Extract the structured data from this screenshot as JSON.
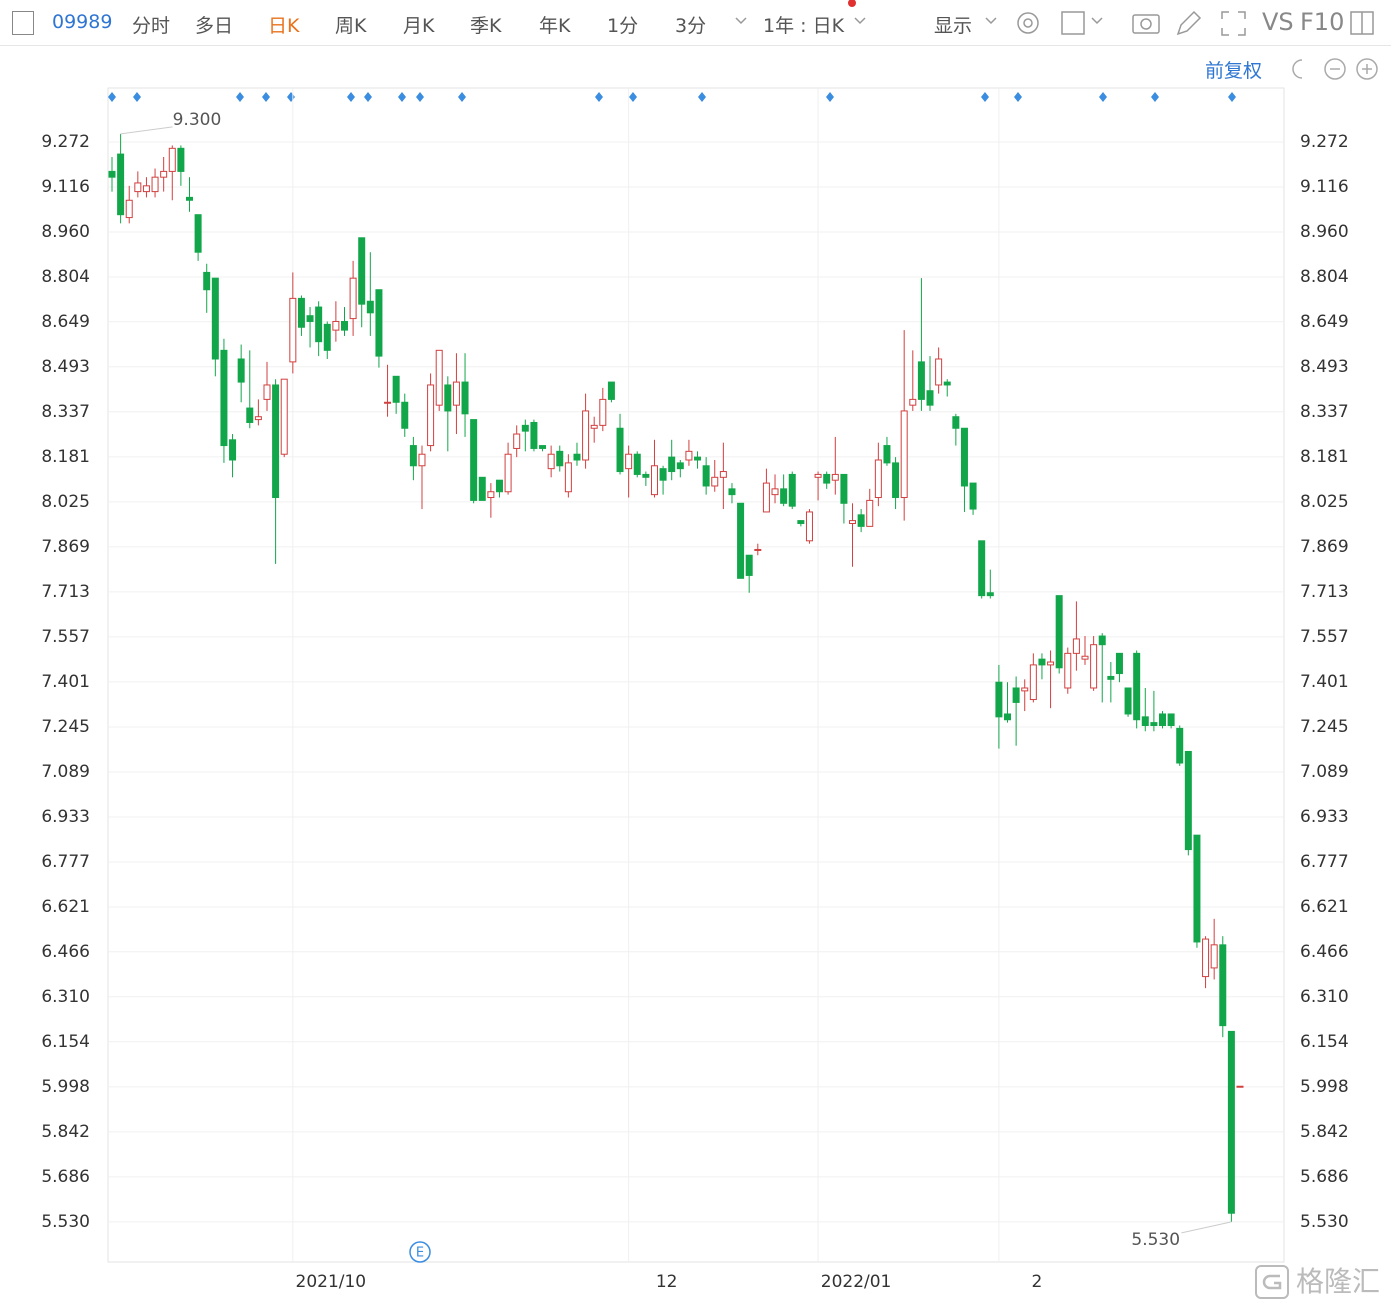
{
  "toolbar": {
    "code": "09989",
    "periods": [
      "分时",
      "多日",
      "日K",
      "周K",
      "月K",
      "季K",
      "年K",
      "1分",
      "3分"
    ],
    "range": "1年 : 日K",
    "display": "显示",
    "vs": "VS",
    "f10": "F10"
  },
  "adjust": "前复权",
  "watermark": "格隆汇",
  "chart_data": {
    "type": "candlestick",
    "categories": [
      null,
      null,
      null,
      null,
      null,
      null,
      null,
      null,
      null,
      null,
      null,
      null,
      null,
      null,
      null,
      null,
      null,
      null,
      null,
      null,
      null,
      "2021/10",
      null,
      null,
      null,
      null,
      null,
      null,
      null,
      null,
      null,
      null,
      null,
      null,
      null,
      null,
      null,
      null,
      null,
      null,
      null,
      null,
      null,
      null,
      null,
      null,
      null,
      null,
      null,
      null,
      null,
      null,
      null,
      null,
      null,
      null,
      null,
      null,
      null,
      null,
      "12",
      null,
      null,
      null,
      null,
      null,
      null,
      null,
      null,
      null,
      null,
      null,
      null,
      null,
      null,
      null,
      null,
      null,
      null,
      null,
      null,
      null,
      "2022/01",
      null,
      null,
      null,
      null,
      null,
      null,
      null,
      null,
      null,
      null,
      null,
      null,
      null,
      null,
      null,
      null,
      null,
      null,
      null,
      null,
      "2",
      null,
      null,
      null,
      null,
      null,
      null,
      null,
      null,
      null,
      null,
      null,
      null,
      null,
      null,
      null,
      null,
      null,
      null,
      null,
      null,
      null,
      null,
      null,
      null,
      null,
      null,
      null,
      null
    ],
    "open": [
      9.17,
      9.23,
      9.01,
      9.1,
      9.1,
      9.1,
      9.15,
      9.17,
      9.25,
      9.08,
      9.02,
      8.82,
      8.8,
      8.55,
      8.24,
      8.52,
      8.35,
      8.31,
      8.38,
      8.43,
      8.19,
      8.51,
      8.73,
      8.67,
      8.7,
      8.64,
      8.62,
      8.65,
      8.66,
      8.94,
      8.72,
      8.76,
      8.37,
      8.46,
      8.37,
      8.22,
      8.15,
      8.22,
      8.36,
      8.43,
      8.36,
      8.44,
      8.31,
      8.11,
      8.04,
      8.1,
      8.06,
      8.21,
      8.29,
      8.3,
      8.22,
      8.14,
      8.2,
      8.06,
      8.19,
      8.17,
      8.28,
      8.29,
      8.44,
      8.28,
      8.14,
      8.19,
      8.12,
      8.05,
      8.14,
      8.18,
      8.16,
      8.17,
      8.18,
      8.15,
      8.08,
      8.11,
      8.07,
      8.02,
      7.84,
      7.86,
      7.99,
      8.05,
      8.07,
      8.12,
      7.96,
      7.89,
      8.11,
      8.12,
      8.1,
      8.12,
      7.95,
      7.98,
      7.94,
      8.04,
      8.22,
      8.16,
      8.04,
      8.36,
      8.51,
      8.41,
      8.43,
      8.44,
      8.32,
      8.28,
      8.09,
      7.89,
      7.71,
      7.4,
      7.29,
      7.38,
      7.37,
      7.34,
      7.48,
      7.46,
      7.7,
      7.38,
      7.5,
      7.48,
      7.38,
      7.56,
      7.42,
      7.5,
      7.38,
      7.5,
      7.28,
      7.26,
      7.29,
      7.29,
      7.24,
      7.16,
      6.87,
      6.38,
      6.41,
      6.49,
      6.19,
      6.0
    ],
    "high": [
      9.22,
      9.3,
      9.12,
      9.17,
      9.15,
      9.18,
      9.22,
      9.26,
      9.26,
      9.15,
      9.02,
      8.85,
      8.8,
      8.59,
      8.26,
      8.57,
      8.55,
      8.38,
      8.51,
      8.45,
      8.45,
      8.82,
      8.74,
      8.7,
      8.72,
      8.65,
      8.72,
      8.7,
      8.86,
      8.94,
      8.89,
      8.76,
      8.5,
      8.46,
      8.4,
      8.25,
      8.22,
      8.47,
      8.55,
      8.46,
      8.54,
      8.54,
      8.31,
      8.11,
      8.09,
      8.1,
      8.23,
      8.29,
      8.31,
      8.31,
      8.22,
      8.22,
      8.22,
      8.19,
      8.23,
      8.4,
      8.32,
      8.42,
      8.44,
      8.33,
      8.22,
      8.2,
      8.13,
      8.24,
      8.15,
      8.24,
      8.17,
      8.24,
      8.2,
      8.18,
      8.17,
      8.23,
      8.09,
      8.02,
      7.84,
      7.88,
      8.14,
      8.12,
      8.12,
      8.13,
      7.96,
      8.0,
      8.13,
      8.13,
      8.25,
      8.12,
      8.02,
      8.0,
      8.07,
      8.23,
      8.25,
      8.18,
      8.62,
      8.55,
      8.8,
      8.53,
      8.56,
      8.45,
      8.33,
      8.28,
      8.09,
      7.89,
      7.79,
      7.46,
      7.4,
      7.42,
      7.41,
      7.5,
      7.5,
      7.51,
      7.7,
      7.52,
      7.68,
      7.56,
      7.56,
      7.57,
      7.47,
      7.5,
      7.38,
      7.51,
      7.38,
      7.37,
      7.3,
      7.29,
      7.25,
      7.16,
      6.87,
      6.52,
      6.58,
      6.52,
      6.19,
      6.0
    ],
    "low": [
      9.1,
      8.99,
      8.99,
      9.08,
      9.08,
      9.08,
      9.1,
      9.07,
      9.12,
      9.03,
      8.86,
      8.68,
      8.46,
      8.16,
      8.11,
      8.37,
      8.28,
      8.29,
      8.34,
      7.81,
      8.18,
      8.47,
      8.6,
      8.56,
      8.53,
      8.52,
      8.58,
      8.6,
      8.6,
      8.63,
      8.6,
      8.49,
      8.32,
      8.33,
      8.25,
      8.1,
      8.0,
      8.2,
      8.34,
      8.2,
      8.26,
      8.25,
      8.02,
      8.03,
      7.97,
      8.04,
      8.05,
      8.18,
      8.2,
      8.2,
      8.2,
      8.11,
      8.13,
      8.04,
      8.15,
      8.14,
      8.23,
      8.27,
      8.37,
      8.12,
      8.04,
      8.11,
      8.08,
      8.04,
      8.05,
      8.1,
      8.11,
      8.15,
      8.14,
      8.05,
      8.06,
      8.0,
      8.02,
      7.76,
      7.71,
      7.84,
      7.99,
      8.02,
      8.01,
      8.0,
      7.94,
      7.88,
      8.03,
      8.07,
      8.05,
      7.95,
      7.8,
      7.92,
      7.94,
      8.01,
      8.15,
      8.0,
      7.96,
      8.34,
      8.34,
      8.34,
      8.4,
      8.39,
      8.22,
      7.99,
      7.98,
      7.69,
      7.69,
      7.17,
      7.26,
      7.18,
      7.3,
      7.33,
      7.41,
      7.31,
      7.43,
      7.36,
      7.44,
      7.46,
      7.37,
      7.33,
      7.33,
      7.4,
      7.28,
      7.24,
      7.23,
      7.23,
      7.24,
      7.24,
      7.11,
      6.8,
      6.48,
      6.34,
      6.37,
      6.17,
      5.53,
      6.0
    ],
    "close": [
      9.15,
      9.02,
      9.07,
      9.13,
      9.12,
      9.15,
      9.17,
      9.25,
      9.17,
      9.07,
      8.89,
      8.76,
      8.52,
      8.22,
      8.17,
      8.44,
      8.3,
      8.32,
      8.43,
      8.04,
      8.45,
      8.73,
      8.63,
      8.65,
      8.58,
      8.55,
      8.65,
      8.62,
      8.8,
      8.71,
      8.68,
      8.53,
      8.37,
      8.37,
      8.28,
      8.15,
      8.19,
      8.43,
      8.55,
      8.34,
      8.44,
      8.33,
      8.03,
      8.03,
      8.06,
      8.06,
      8.19,
      8.26,
      8.27,
      8.21,
      8.21,
      8.19,
      8.15,
      8.16,
      8.17,
      8.34,
      8.29,
      8.38,
      8.38,
      8.13,
      8.19,
      8.12,
      8.11,
      8.15,
      8.1,
      8.13,
      8.14,
      8.2,
      8.17,
      8.08,
      8.11,
      8.13,
      8.05,
      7.76,
      7.77,
      7.86,
      8.09,
      8.07,
      8.02,
      8.01,
      7.95,
      7.99,
      8.12,
      8.09,
      8.12,
      8.02,
      7.96,
      7.94,
      8.03,
      8.17,
      8.16,
      8.04,
      8.34,
      8.38,
      8.38,
      8.36,
      8.52,
      8.43,
      8.28,
      8.08,
      8.0,
      7.7,
      7.7,
      7.28,
      7.27,
      7.33,
      7.38,
      7.46,
      7.46,
      7.47,
      7.45,
      7.5,
      7.55,
      7.49,
      7.53,
      7.53,
      7.41,
      7.43,
      7.29,
      7.27,
      7.25,
      7.25,
      7.25,
      7.25,
      7.12,
      6.82,
      6.5,
      6.51,
      6.49,
      6.21,
      5.56,
      6.0
    ],
    "up_color": "#d23f3f",
    "down_color": "#12a64a",
    "ylim": [
      5.391,
      9.459
    ],
    "yticks": [
      9.272,
      9.116,
      {
        "value": 8.96,
        "label": "8.960"
      },
      8.804,
      8.649,
      8.493,
      8.337,
      8.181,
      8.025,
      7.869,
      7.713,
      7.557,
      7.401,
      7.245,
      7.089,
      6.933,
      6.777,
      6.621,
      6.466,
      {
        "value": 6.31,
        "label": "6.310"
      },
      6.154,
      5.998,
      5.842,
      5.686,
      {
        "value": 5.53,
        "label": "5.530"
      }
    ],
    "grid": true,
    "annotations": [
      {
        "value": 9.3,
        "label": "9.300"
      },
      {
        "value": 5.53,
        "label": "5.530"
      }
    ]
  }
}
